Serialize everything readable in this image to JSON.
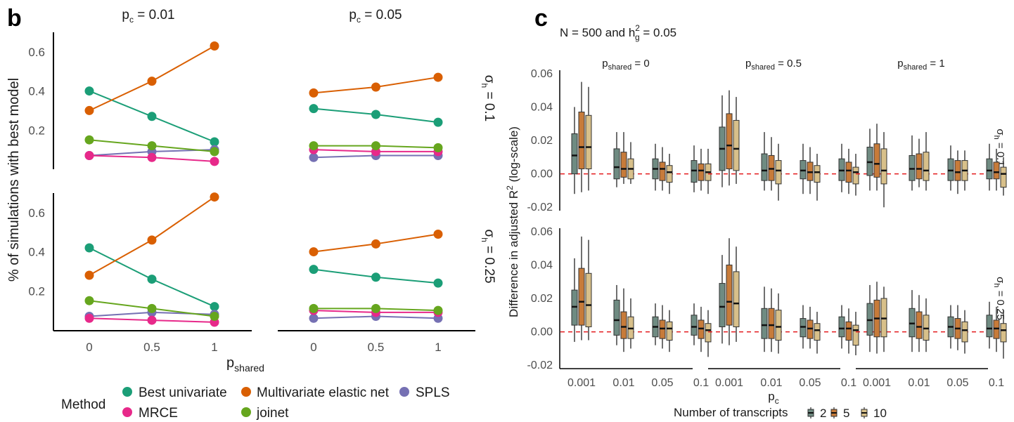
{
  "panel_b": {
    "label": "b",
    "col_titles": [
      {
        "main": "p",
        "sub": "c",
        "rest": " = 0.01"
      },
      {
        "main": "p",
        "sub": "c",
        "rest": " = 0.05"
      }
    ],
    "ylabel": "% of simulations with best model",
    "xlabel": {
      "main": "p",
      "sub": "shared"
    },
    "x_ticks": [
      "0",
      "0.5",
      "1"
    ],
    "y_ticks": [
      "0.2",
      "0.4",
      "0.6"
    ],
    "legend": {
      "title": "Method",
      "items": [
        {
          "name": "Best univariate",
          "color": "#1b9e77"
        },
        {
          "name": "Multivariate elastic net",
          "color": "#d95f02"
        },
        {
          "name": "SPLS",
          "color": "#7570b3"
        },
        {
          "name": "MRCE",
          "color": "#e7298a"
        },
        {
          "name": "joinet",
          "color": "#66a61e"
        }
      ]
    }
  },
  "panel_c": {
    "label": "c",
    "title": {
      "pre": "N = 500 and h",
      "sup": "2",
      "sub": "g",
      "post": " = 0.05"
    },
    "col_strips": [
      {
        "main": "p",
        "sub": "shared",
        "rest": " = 0"
      },
      {
        "main": "p",
        "sub": "shared",
        "rest": " = 0.5"
      },
      {
        "main": "p",
        "sub": "shared",
        "rest": " = 1"
      }
    ],
    "row_strips": [
      {
        "main": "σ",
        "sub": "h",
        "rest": " = 0.1"
      },
      {
        "main": "σ",
        "sub": "h",
        "rest": " = 0.25"
      }
    ],
    "ylabel": {
      "pre": "Difference in adjusted R",
      "sup": "2",
      "post": " (log-scale)"
    },
    "xlabel": {
      "main": "p",
      "sub": "c"
    },
    "x_ticks": [
      "0.001",
      "0.01",
      "0.05",
      "0.1"
    ],
    "y_ticks": [
      "-0.02",
      "0.00",
      "0.02",
      "0.04",
      "0.06"
    ],
    "legend": {
      "title": "Number of transcripts",
      "items": [
        {
          "name": "2",
          "color": "#6f8b82"
        },
        {
          "name": "5",
          "color": "#c77b3a"
        },
        {
          "name": "10",
          "color": "#d8c08a"
        }
      ]
    }
  },
  "chart_data": [
    {
      "type": "line",
      "facets": {
        "columns": [
          "p_c = 0.01",
          "p_c = 0.05"
        ],
        "rows": 2
      },
      "x": [
        0,
        0.5,
        1
      ],
      "ylim": [
        0,
        0.7
      ],
      "panels": [
        {
          "col": 0,
          "row": 0,
          "series": [
            {
              "name": "Best univariate",
              "values": [
                0.4,
                0.27,
                0.14
              ]
            },
            {
              "name": "Multivariate elastic net",
              "values": [
                0.3,
                0.45,
                0.63
              ]
            },
            {
              "name": "SPLS",
              "values": [
                0.07,
                0.09,
                0.1
              ]
            },
            {
              "name": "MRCE",
              "values": [
                0.07,
                0.06,
                0.04
              ]
            },
            {
              "name": "joinet",
              "values": [
                0.15,
                0.12,
                0.09
              ]
            }
          ]
        },
        {
          "col": 1,
          "row": 0,
          "series": [
            {
              "name": "Best univariate",
              "values": [
                0.31,
                0.28,
                0.24
              ]
            },
            {
              "name": "Multivariate elastic net",
              "values": [
                0.39,
                0.42,
                0.47
              ]
            },
            {
              "name": "SPLS",
              "values": [
                0.06,
                0.07,
                0.07
              ]
            },
            {
              "name": "MRCE",
              "values": [
                0.1,
                0.09,
                0.09
              ]
            },
            {
              "name": "joinet",
              "values": [
                0.12,
                0.12,
                0.11
              ]
            }
          ]
        },
        {
          "col": 0,
          "row": 1,
          "series": [
            {
              "name": "Best univariate",
              "values": [
                0.42,
                0.26,
                0.12
              ]
            },
            {
              "name": "Multivariate elastic net",
              "values": [
                0.28,
                0.46,
                0.68
              ]
            },
            {
              "name": "SPLS",
              "values": [
                0.07,
                0.09,
                0.08
              ]
            },
            {
              "name": "MRCE",
              "values": [
                0.06,
                0.05,
                0.04
              ]
            },
            {
              "name": "joinet",
              "values": [
                0.15,
                0.11,
                0.07
              ]
            }
          ]
        },
        {
          "col": 1,
          "row": 1,
          "series": [
            {
              "name": "Best univariate",
              "values": [
                0.31,
                0.27,
                0.24
              ]
            },
            {
              "name": "Multivariate elastic net",
              "values": [
                0.4,
                0.44,
                0.49
              ]
            },
            {
              "name": "SPLS",
              "values": [
                0.06,
                0.07,
                0.06
              ]
            },
            {
              "name": "MRCE",
              "values": [
                0.1,
                0.09,
                0.09
              ]
            },
            {
              "name": "joinet",
              "values": [
                0.11,
                0.11,
                0.1
              ]
            }
          ]
        }
      ]
    },
    {
      "type": "box",
      "facets": {
        "columns": [
          "p_shared = 0",
          "p_shared = 0.5",
          "p_shared = 1"
        ],
        "rows": [
          "sigma_h = 0.1",
          "sigma_h = 0.25"
        ]
      },
      "categories": [
        "0.001",
        "0.01",
        "0.05",
        "0.1"
      ],
      "groups": [
        "2",
        "5",
        "10"
      ],
      "ylim": [
        -0.022,
        0.062
      ],
      "reference_line": 0,
      "panels": [
        {
          "col": 0,
          "row": 0,
          "boxes": [
            [
              [
                -0.012,
                0.0,
                0.011,
                0.024,
                0.04
              ],
              [
                -0.011,
                0.003,
                0.016,
                0.037,
                0.055
              ],
              [
                -0.01,
                0.003,
                0.016,
                0.035,
                0.052
              ]
            ],
            [
              [
                -0.008,
                -0.003,
                0.004,
                0.015,
                0.025
              ],
              [
                -0.006,
                -0.002,
                0.003,
                0.013,
                0.025
              ],
              [
                -0.006,
                -0.003,
                0.003,
                0.009,
                0.019
              ]
            ],
            [
              [
                -0.01,
                -0.003,
                0.003,
                0.009,
                0.018
              ],
              [
                -0.01,
                -0.004,
                0.003,
                0.007,
                0.016
              ],
              [
                -0.012,
                -0.005,
                0.001,
                0.005,
                0.012
              ]
            ],
            [
              [
                -0.011,
                -0.005,
                0.002,
                0.008,
                0.017
              ],
              [
                -0.01,
                -0.004,
                0.002,
                0.006,
                0.015
              ],
              [
                -0.012,
                -0.004,
                0.001,
                0.006,
                0.015
              ]
            ]
          ]
        },
        {
          "col": 1,
          "row": 0,
          "boxes": [
            [
              [
                -0.008,
                0.002,
                0.015,
                0.028,
                0.047
              ],
              [
                -0.007,
                0.003,
                0.017,
                0.036,
                0.05
              ],
              [
                -0.006,
                0.002,
                0.015,
                0.032,
                0.046
              ]
            ],
            [
              [
                -0.01,
                -0.004,
                0.002,
                0.012,
                0.025
              ],
              [
                -0.01,
                -0.004,
                0.003,
                0.011,
                0.022
              ],
              [
                -0.016,
                -0.006,
                0.002,
                0.008,
                0.018
              ]
            ],
            [
              [
                -0.012,
                -0.003,
                0.002,
                0.008,
                0.018
              ],
              [
                -0.012,
                -0.004,
                0.001,
                0.007,
                0.016
              ],
              [
                -0.016,
                -0.005,
                0.001,
                0.005,
                0.012
              ]
            ],
            [
              [
                -0.011,
                -0.004,
                0.002,
                0.009,
                0.018
              ],
              [
                -0.012,
                -0.005,
                0.002,
                0.007,
                0.015
              ],
              [
                -0.013,
                -0.006,
                0.001,
                0.004,
                0.012
              ]
            ]
          ]
        },
        {
          "col": 2,
          "row": 0,
          "boxes": [
            [
              [
                -0.01,
                -0.001,
                0.007,
                0.016,
                0.027
              ],
              [
                -0.01,
                -0.002,
                0.006,
                0.018,
                0.03
              ],
              [
                -0.02,
                -0.006,
                0.002,
                0.015,
                0.025
              ]
            ],
            [
              [
                -0.01,
                -0.004,
                0.003,
                0.011,
                0.023
              ],
              [
                -0.008,
                -0.003,
                0.003,
                0.012,
                0.021
              ],
              [
                -0.01,
                -0.004,
                0.002,
                0.013,
                0.025
              ]
            ],
            [
              [
                -0.01,
                -0.004,
                0.002,
                0.009,
                0.017
              ],
              [
                -0.012,
                -0.004,
                0.001,
                0.008,
                0.014
              ],
              [
                -0.01,
                -0.004,
                0.002,
                0.008,
                0.014
              ]
            ],
            [
              [
                -0.01,
                -0.003,
                0.002,
                0.009,
                0.018
              ],
              [
                -0.01,
                -0.003,
                0.001,
                0.007,
                0.015
              ],
              [
                -0.013,
                -0.008,
                0.0,
                0.004,
                0.01
              ]
            ]
          ]
        },
        {
          "col": 0,
          "row": 1,
          "boxes": [
            [
              [
                -0.006,
                0.004,
                0.015,
                0.025,
                0.044
              ],
              [
                -0.005,
                0.004,
                0.018,
                0.038,
                0.057
              ],
              [
                -0.005,
                0.003,
                0.016,
                0.035,
                0.055
              ]
            ],
            [
              [
                -0.008,
                -0.002,
                0.007,
                0.019,
                0.028
              ],
              [
                -0.012,
                -0.004,
                0.003,
                0.012,
                0.026
              ],
              [
                -0.01,
                -0.004,
                0.002,
                0.009,
                0.02
              ]
            ],
            [
              [
                -0.008,
                -0.003,
                0.003,
                0.009,
                0.017
              ],
              [
                -0.01,
                -0.004,
                0.002,
                0.007,
                0.016
              ],
              [
                -0.012,
                -0.005,
                0.002,
                0.006,
                0.013
              ]
            ],
            [
              [
                -0.008,
                -0.002,
                0.003,
                0.01,
                0.017
              ],
              [
                -0.012,
                -0.004,
                0.002,
                0.007,
                0.015
              ],
              [
                -0.015,
                -0.006,
                0.001,
                0.005,
                0.013
              ]
            ]
          ]
        },
        {
          "col": 1,
          "row": 1,
          "boxes": [
            [
              [
                -0.007,
                0.003,
                0.015,
                0.029,
                0.046
              ],
              [
                -0.008,
                0.004,
                0.018,
                0.04,
                0.056
              ],
              [
                -0.006,
                0.003,
                0.017,
                0.036,
                0.051
              ]
            ],
            [
              [
                -0.012,
                -0.004,
                0.004,
                0.014,
                0.027
              ],
              [
                -0.012,
                -0.004,
                0.004,
                0.014,
                0.026
              ],
              [
                -0.013,
                -0.005,
                0.003,
                0.013,
                0.023
              ]
            ],
            [
              [
                -0.01,
                -0.003,
                0.003,
                0.008,
                0.016
              ],
              [
                -0.01,
                -0.004,
                0.002,
                0.007,
                0.015
              ],
              [
                -0.013,
                -0.005,
                0.001,
                0.005,
                0.012
              ]
            ],
            [
              [
                -0.01,
                -0.003,
                0.002,
                0.009,
                0.016
              ],
              [
                -0.013,
                -0.005,
                0.002,
                0.006,
                0.014
              ],
              [
                -0.014,
                -0.008,
                0.001,
                0.004,
                0.012
              ]
            ]
          ]
        },
        {
          "col": 2,
          "row": 1,
          "boxes": [
            [
              [
                -0.012,
                -0.002,
                0.007,
                0.017,
                0.028
              ],
              [
                -0.013,
                -0.003,
                0.008,
                0.019,
                0.03
              ],
              [
                -0.012,
                -0.003,
                0.008,
                0.02,
                0.027
              ]
            ],
            [
              [
                -0.012,
                -0.003,
                0.005,
                0.014,
                0.025
              ],
              [
                -0.012,
                -0.004,
                0.003,
                0.012,
                0.022
              ],
              [
                -0.012,
                -0.005,
                0.002,
                0.01,
                0.02
              ]
            ],
            [
              [
                -0.01,
                -0.003,
                0.003,
                0.009,
                0.016
              ],
              [
                -0.011,
                -0.004,
                0.002,
                0.008,
                0.016
              ],
              [
                -0.013,
                -0.006,
                0.001,
                0.006,
                0.013
              ]
            ],
            [
              [
                -0.01,
                -0.003,
                0.002,
                0.01,
                0.018
              ],
              [
                -0.012,
                -0.004,
                0.002,
                0.007,
                0.015
              ],
              [
                -0.016,
                -0.006,
                0.001,
                0.005,
                0.013
              ]
            ]
          ]
        }
      ]
    }
  ]
}
